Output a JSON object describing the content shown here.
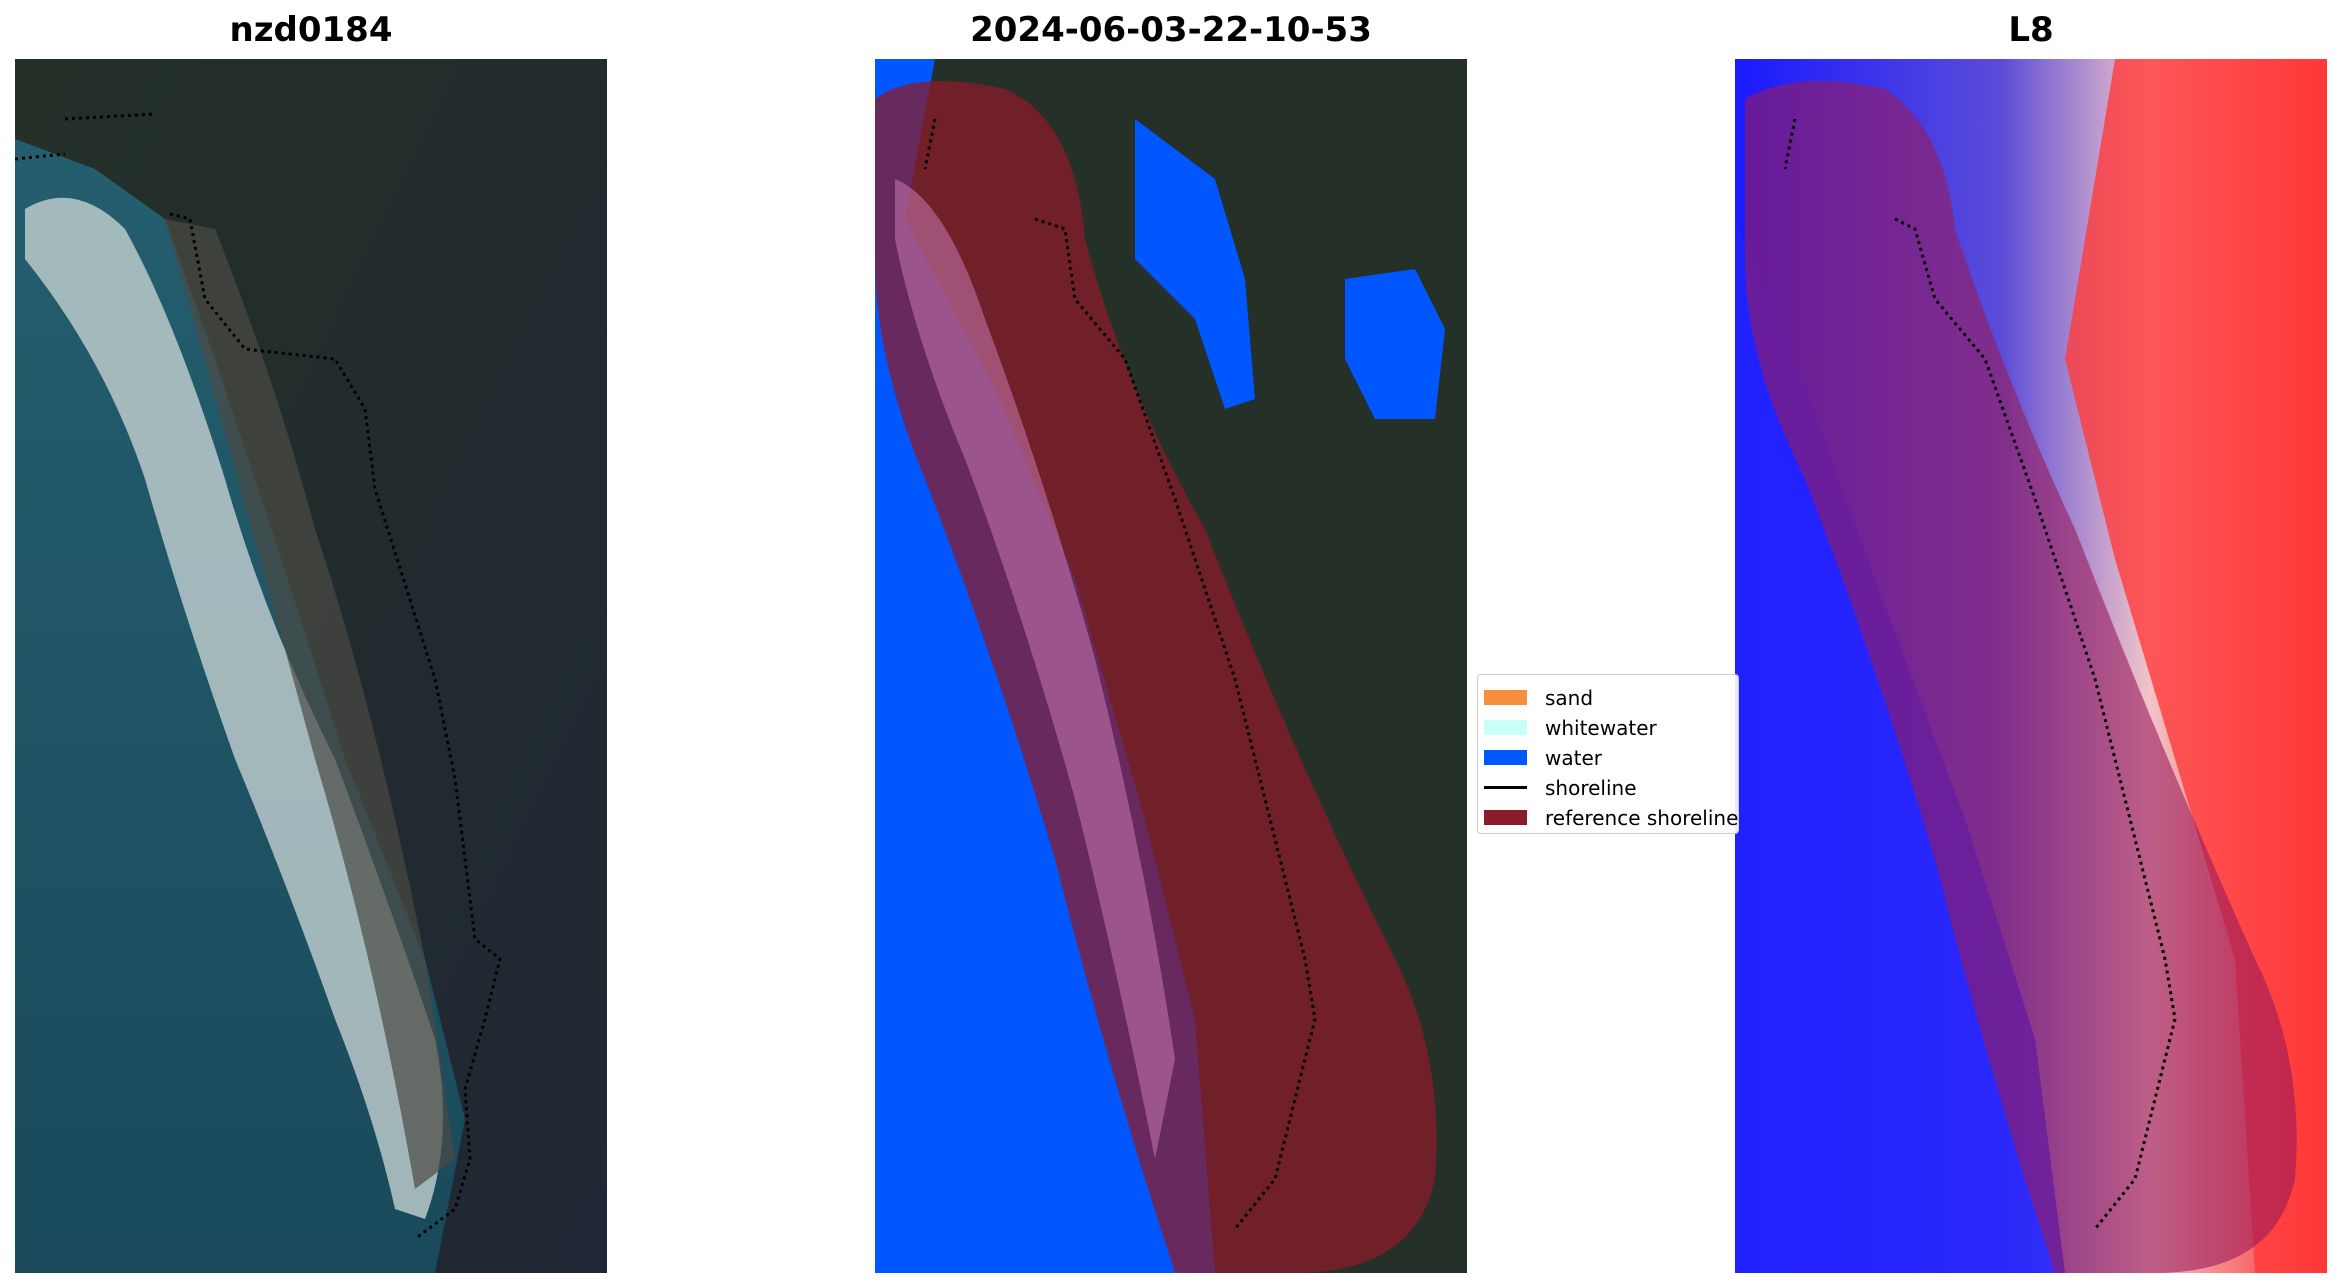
{
  "panels": [
    {
      "title": "nzd0184"
    },
    {
      "title": "2024-06-03-22-10-53"
    },
    {
      "title": "L8"
    }
  ],
  "legend": {
    "items": [
      {
        "label": "sand",
        "color": "#f98d3e",
        "kind": "patch"
      },
      {
        "label": "whitewater",
        "color": "#c8fff7",
        "kind": "patch"
      },
      {
        "label": "water",
        "color": "#0057ff",
        "kind": "patch"
      },
      {
        "label": "shoreline",
        "color": "#000000",
        "kind": "line"
      },
      {
        "label": "reference shoreline",
        "color": "#8b1a2a",
        "kind": "patch"
      }
    ]
  },
  "colors": {
    "satellite_land": "#1f2a24",
    "satellite_sea": "#1d5566",
    "classified_water": "#0057ff",
    "reference_buffer": "#8b1a2a",
    "index_high": "#ff2a2a",
    "index_low": "#1a1aff"
  }
}
